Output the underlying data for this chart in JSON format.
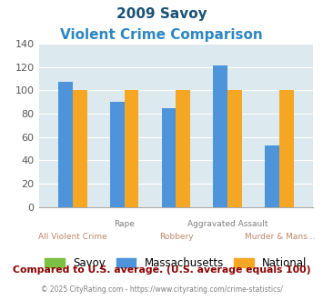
{
  "title_line1": "2009 Savoy",
  "title_line2": "Violent Crime Comparison",
  "categories": [
    "All Violent Crime",
    "Rape",
    "Robbery",
    "Aggravated Assault",
    "Murder & Mans..."
  ],
  "savoy": [
    0,
    0,
    0,
    0,
    0
  ],
  "massachusetts": [
    107,
    90,
    85,
    121,
    53
  ],
  "national": [
    100,
    100,
    100,
    100,
    100
  ],
  "color_savoy": "#7bc143",
  "color_massachusetts": "#4d94db",
  "color_national": "#f5a623",
  "ylabel_max": 140,
  "yticks": [
    0,
    20,
    40,
    60,
    80,
    100,
    120,
    140
  ],
  "plot_bg": "#dce9ef",
  "footnote": "Compared to U.S. average. (U.S. average equals 100)",
  "credit": "© 2025 CityRating.com - https://www.cityrating.com/crime-statistics/",
  "title_color": "#1a5276",
  "subtitle_color": "#2e86c1",
  "footnote_color": "#8B0000",
  "credit_color": "#7f7f7f",
  "xlabel_color_top": "#7f7f7f",
  "xlabel_color_bot": "#c0856b",
  "cat_labels_top": [
    "",
    "Rape",
    "",
    "Aggravated Assault",
    ""
  ],
  "cat_labels_bot": [
    "All Violent Crime",
    "",
    "Robbery",
    "",
    "Murder & Mans..."
  ]
}
